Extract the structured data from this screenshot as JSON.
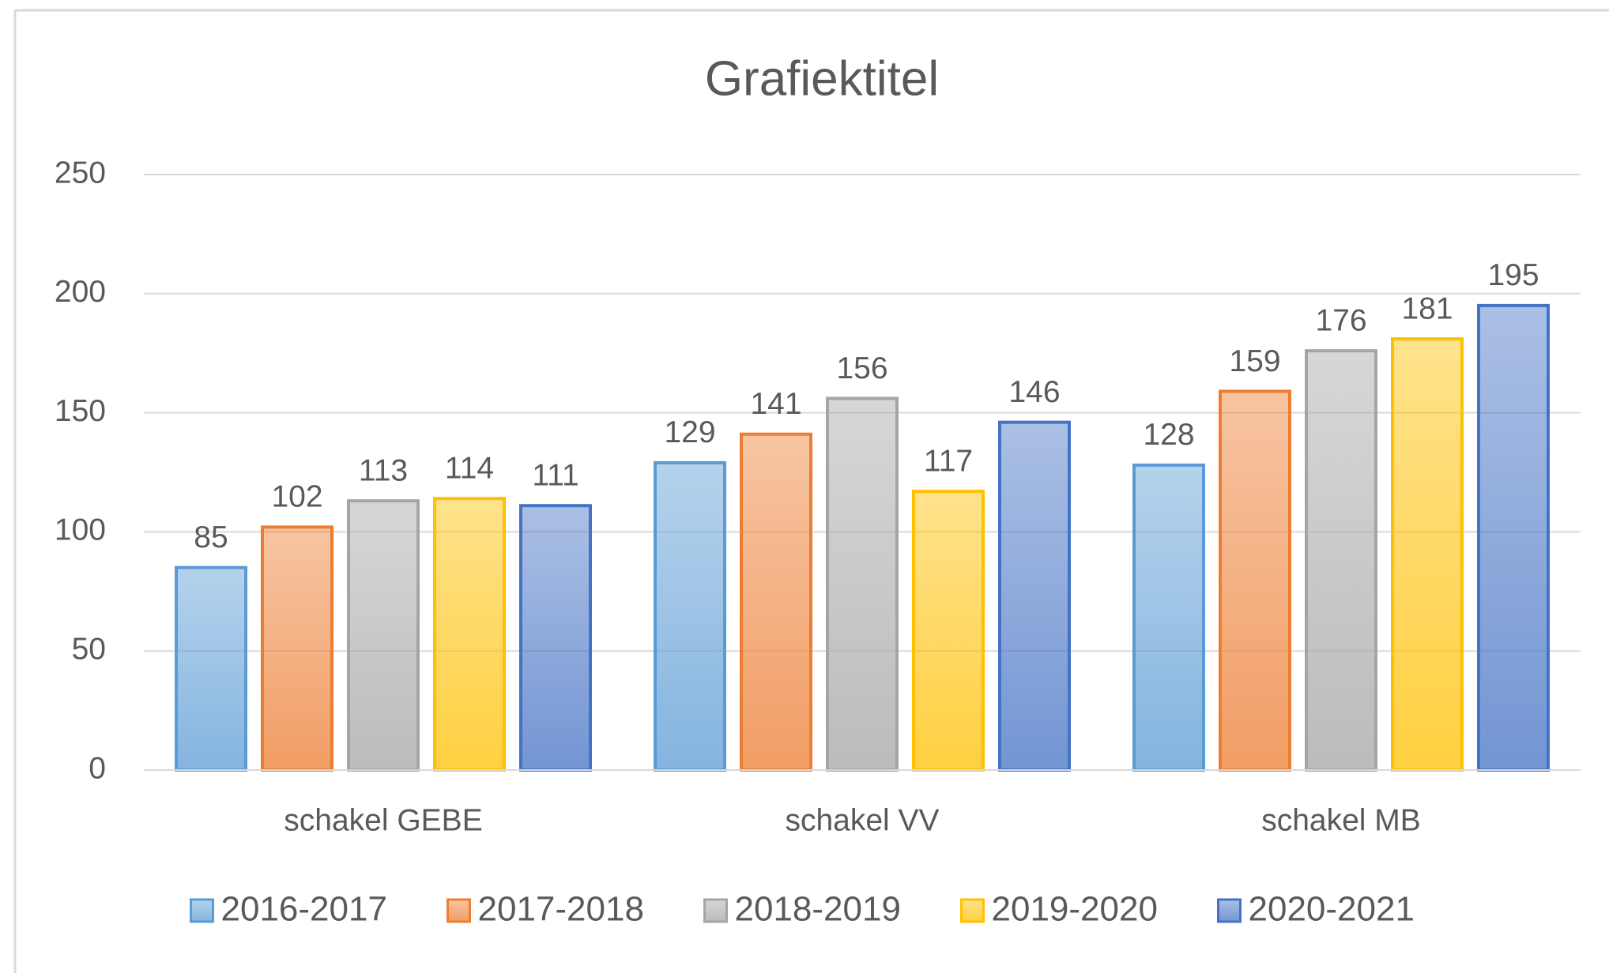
{
  "chart_data": {
    "type": "bar",
    "title": "Grafiektitel",
    "categories": [
      "schakel GEBE",
      "schakel VV",
      "schakel MB"
    ],
    "series": [
      {
        "name": "2016-2017",
        "color": "#5b9bd5",
        "values": [
          85,
          129,
          128
        ]
      },
      {
        "name": "2017-2018",
        "color": "#ed7d31",
        "values": [
          102,
          141,
          159
        ]
      },
      {
        "name": "2018-2019",
        "color": "#a5a5a5",
        "values": [
          113,
          156,
          176
        ]
      },
      {
        "name": "2019-2020",
        "color": "#ffc000",
        "values": [
          114,
          117,
          181
        ]
      },
      {
        "name": "2020-2021",
        "color": "#4472c4",
        "values": [
          111,
          146,
          195
        ]
      }
    ],
    "ylim": [
      0,
      250
    ],
    "yticks": [
      0,
      50,
      100,
      150,
      200,
      250
    ],
    "grid": true,
    "legend": "bottom"
  }
}
